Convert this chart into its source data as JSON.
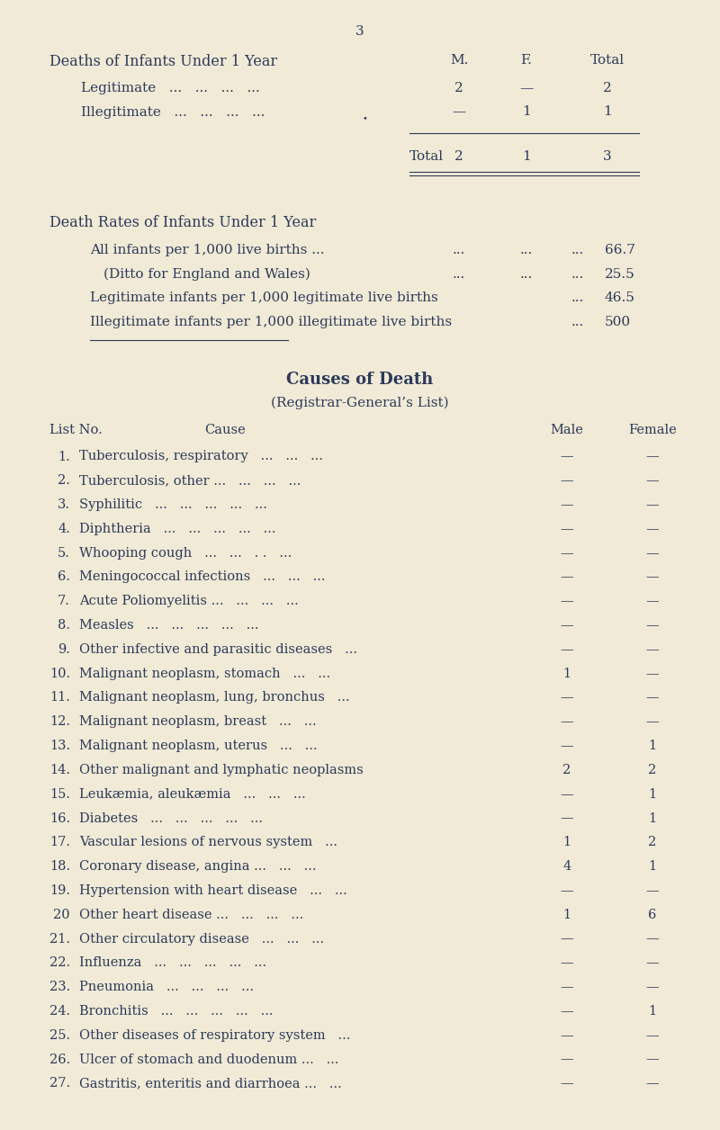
{
  "bg_color": "#f0ead6",
  "text_color": "#2c3a5a",
  "fig_w": 8.0,
  "fig_h": 12.56,
  "dpi": 100,
  "page_number": "3",
  "s1_title_left": "Deaths of Infants Under 1 Year",
  "s1_col_m": "M.",
  "s1_col_f": "F.",
  "s1_col_total": "Total",
  "s1_row1_label": "Legitimate   ...   ...   ...   ...",
  "s1_row1_m": "2",
  "s1_row1_f": "—",
  "s1_row1_t": "2",
  "s1_row2_label": "Illegitimate   ...   ...   ...   ...",
  "s1_row2_m": "—",
  "s1_row2_f": "1",
  "s1_row2_t": "1",
  "s1_total_label": "Total",
  "s1_total_m": "2",
  "s1_total_f": "1",
  "s1_total_t": "3",
  "s2_title": "Death Rates of Infants Under 1 Year",
  "s2_r1": "All infants per 1,000 live births ...",
  "s2_r1_dots": "...",
  "s2_r1_val": "66.7",
  "s2_r2": "(Ditto for England and Wales)",
  "s2_r2_val": "25.5",
  "s2_r3": "Legitimate infants per 1,000 legitimate live births",
  "s2_r3_val": "46.5",
  "s2_r4": "Illegitimate infants per 1,000 illegitimate live births",
  "s2_r4_val": "500",
  "s3_title": "Causes of Death",
  "s3_subtitle": "(Registrar-General’s List)",
  "s3_h_listno": "List No.",
  "s3_h_cause": "Cause",
  "s3_h_male": "Male",
  "s3_h_female": "Female",
  "causes": [
    [
      "1.",
      "Tuberculosis, respiratory   ...   ...   ...",
      "—",
      "—"
    ],
    [
      "2.",
      "Tuberculosis, other ...   ...   ...   ...",
      "—",
      "—"
    ],
    [
      "3.",
      "Syphilitic   ...   ...   ...   ...   ...",
      "—",
      "—"
    ],
    [
      "4.",
      "Diphtheria   ...   ...   ...   ...   ...",
      "—",
      "—"
    ],
    [
      "5.",
      "Whooping cough   ...   ...   . .   ...",
      "—",
      "—"
    ],
    [
      "6.",
      "Meningococcal infections   ...   ...   ...",
      "—",
      "—"
    ],
    [
      "7.",
      "Acute Poliomyelitis ...   ...   ...   ...",
      "—",
      "—"
    ],
    [
      "8.",
      "Measles   ...   ...   ...   ...   ...",
      "—",
      "—"
    ],
    [
      "9.",
      "Other infective and parasitic diseases   ...",
      "—",
      "—"
    ],
    [
      "10.",
      "Malignant neoplasm, stomach   ...   ...",
      "1",
      "—"
    ],
    [
      "11.",
      "Malignant neoplasm, lung, bronchus   ...",
      "—",
      "—"
    ],
    [
      "12.",
      "Malignant neoplasm, breast   ...   ...",
      "—",
      "—"
    ],
    [
      "13.",
      "Malignant neoplasm, uterus   ...   ...",
      "—",
      "1"
    ],
    [
      "14.",
      "Other malignant and lymphatic neoplasms",
      "2",
      "2"
    ],
    [
      "15.",
      "Leukæmia, aleukæmia   ...   ...   ...",
      "—",
      "1"
    ],
    [
      "16.",
      "Diabetes   ...   ...   ...   ...   ...",
      "—",
      "1"
    ],
    [
      "17.",
      "Vascular lesions of nervous system   ...",
      "1",
      "2"
    ],
    [
      "18.",
      "Coronary disease, angina ...   ...   ...",
      "4",
      "1"
    ],
    [
      "19.",
      "Hypertension with heart disease   ...   ...",
      "—",
      "—"
    ],
    [
      "20",
      "Other heart disease ...   ...   ...   ...",
      "1",
      "6"
    ],
    [
      "21.",
      "Other circulatory disease   ...   ...   ...",
      "—",
      "—"
    ],
    [
      "22.",
      "Influenza   ...   ...   ...   ...   ...",
      "—",
      "—"
    ],
    [
      "23.",
      "Pneumonia   ...   ...   ...   ...",
      "—",
      "—"
    ],
    [
      "24.",
      "Bronchitis   ...   ...   ...   ...   ...",
      "—",
      "1"
    ],
    [
      "25.",
      "Other diseases of respiratory system   ...",
      "—",
      "—"
    ],
    [
      "26.",
      "Ulcer of stomach and duodenum ...   ...",
      "—",
      "—"
    ],
    [
      "27.",
      "Gastritis, enteritis and diarrhoea ...   ...",
      "—",
      "—"
    ]
  ]
}
